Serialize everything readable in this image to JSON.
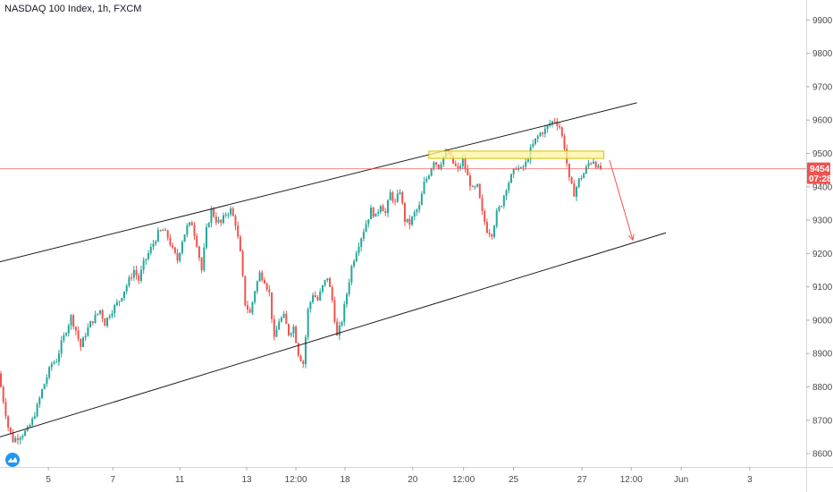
{
  "chart_data": {
    "type": "candlestick",
    "title": "NASDAQ 100 Index, 1h, FXCM",
    "ylim": [
      8560,
      9960
    ],
    "xlim": [
      0,
      100
    ],
    "yticks": [
      8600,
      8700,
      8800,
      8900,
      9000,
      9100,
      9200,
      9300,
      9400,
      9500,
      9600,
      9700,
      9800,
      9900
    ],
    "xticks": [
      {
        "x": 6.0,
        "label": "5"
      },
      {
        "x": 14.0,
        "label": "7"
      },
      {
        "x": 22.3,
        "label": "11"
      },
      {
        "x": 30.6,
        "label": "13"
      },
      {
        "x": 36.7,
        "label": "12:00"
      },
      {
        "x": 42.8,
        "label": "18"
      },
      {
        "x": 51.2,
        "label": "20"
      },
      {
        "x": 57.5,
        "label": "12:00"
      },
      {
        "x": 63.7,
        "label": "25"
      },
      {
        "x": 72.2,
        "label": "27"
      },
      {
        "x": 78.3,
        "label": "12:00"
      },
      {
        "x": 84.5,
        "label": "Jun"
      },
      {
        "x": 93.0,
        "label": "3"
      }
    ],
    "price_path": [
      [
        0,
        8840
      ],
      [
        0.6,
        8760
      ],
      [
        1.2,
        8680
      ],
      [
        1.8,
        8640
      ],
      [
        2.4,
        8650
      ],
      [
        3,
        8660
      ],
      [
        3.6,
        8670
      ],
      [
        4.2,
        8700
      ],
      [
        4.8,
        8740
      ],
      [
        5.4,
        8790
      ],
      [
        6,
        8830
      ],
      [
        6.6,
        8870
      ],
      [
        7.2,
        8880
      ],
      [
        7.8,
        8930
      ],
      [
        8.4,
        8970
      ],
      [
        9,
        9010
      ],
      [
        9.6,
        8970
      ],
      [
        10.2,
        8920
      ],
      [
        10.8,
        8960
      ],
      [
        11.4,
        8990
      ],
      [
        12,
        9010
      ],
      [
        12.6,
        9030
      ],
      [
        13.2,
        8990
      ],
      [
        13.8,
        9020
      ],
      [
        14.4,
        9040
      ],
      [
        15,
        9060
      ],
      [
        15.6,
        9090
      ],
      [
        16.2,
        9120
      ],
      [
        16.8,
        9150
      ],
      [
        17.4,
        9120
      ],
      [
        18,
        9170
      ],
      [
        18.6,
        9200
      ],
      [
        19.2,
        9230
      ],
      [
        19.8,
        9260
      ],
      [
        20.4,
        9270
      ],
      [
        21,
        9250
      ],
      [
        21.6,
        9210
      ],
      [
        22.2,
        9180
      ],
      [
        22.8,
        9240
      ],
      [
        23.4,
        9280
      ],
      [
        24,
        9290
      ],
      [
        24.6,
        9230
      ],
      [
        25.2,
        9150
      ],
      [
        25.8,
        9270
      ],
      [
        26.4,
        9330
      ],
      [
        27,
        9300
      ],
      [
        27.6,
        9290
      ],
      [
        28.2,
        9320
      ],
      [
        28.8,
        9330
      ],
      [
        29.4,
        9290
      ],
      [
        30,
        9200
      ],
      [
        30.6,
        9050
      ],
      [
        31.2,
        9020
      ],
      [
        31.8,
        9090
      ],
      [
        32.4,
        9140
      ],
      [
        33,
        9120
      ],
      [
        33.6,
        9080
      ],
      [
        34.2,
        8940
      ],
      [
        34.8,
        9000
      ],
      [
        35.4,
        9010
      ],
      [
        36,
        8960
      ],
      [
        36.6,
        8980
      ],
      [
        37.2,
        8900
      ],
      [
        37.8,
        8870
      ],
      [
        38.4,
        9030
      ],
      [
        39,
        9080
      ],
      [
        39.6,
        9060
      ],
      [
        40.2,
        9100
      ],
      [
        40.8,
        9130
      ],
      [
        41.4,
        9060
      ],
      [
        42,
        8950
      ],
      [
        42.6,
        9000
      ],
      [
        43.2,
        9080
      ],
      [
        43.8,
        9160
      ],
      [
        44.4,
        9210
      ],
      [
        45,
        9250
      ],
      [
        45.6,
        9290
      ],
      [
        46.2,
        9330
      ],
      [
        46.8,
        9310
      ],
      [
        47.4,
        9350
      ],
      [
        48,
        9320
      ],
      [
        48.6,
        9380
      ],
      [
        49.2,
        9350
      ],
      [
        49.8,
        9390
      ],
      [
        50.4,
        9300
      ],
      [
        51,
        9290
      ],
      [
        51.6,
        9320
      ],
      [
        52.2,
        9340
      ],
      [
        52.8,
        9410
      ],
      [
        53.4,
        9440
      ],
      [
        54,
        9480
      ],
      [
        54.6,
        9460
      ],
      [
        55.2,
        9490
      ],
      [
        55.8,
        9500
      ],
      [
        56.4,
        9470
      ],
      [
        57,
        9450
      ],
      [
        57.6,
        9480
      ],
      [
        58.2,
        9430
      ],
      [
        58.8,
        9390
      ],
      [
        59.4,
        9400
      ],
      [
        60,
        9320
      ],
      [
        60.6,
        9270
      ],
      [
        61.2,
        9260
      ],
      [
        61.8,
        9320
      ],
      [
        62.4,
        9350
      ],
      [
        63,
        9400
      ],
      [
        63.6,
        9430
      ],
      [
        64.2,
        9460
      ],
      [
        64.8,
        9450
      ],
      [
        65.4,
        9470
      ],
      [
        66,
        9510
      ],
      [
        66.6,
        9540
      ],
      [
        67.2,
        9560
      ],
      [
        67.8,
        9570
      ],
      [
        68.4,
        9590
      ],
      [
        69,
        9600
      ],
      [
        69.6,
        9580
      ],
      [
        70.2,
        9520
      ],
      [
        70.8,
        9420
      ],
      [
        71.4,
        9380
      ],
      [
        72,
        9420
      ],
      [
        72.6,
        9440
      ],
      [
        73.2,
        9470
      ],
      [
        73.8,
        9480
      ],
      [
        74.4,
        9454
      ]
    ],
    "channel_upper": [
      [
        0,
        9175
      ],
      [
        79,
        9652
      ]
    ],
    "channel_lower": [
      [
        0,
        8650
      ],
      [
        82.6,
        9262
      ]
    ],
    "resistance_zone": {
      "x0": 53.2,
      "x1": 74.9,
      "y0": 9485,
      "y1": 9507
    },
    "projection_arrow": {
      "from": [
        75.6,
        9480
      ],
      "to": [
        78.5,
        9240
      ]
    },
    "last_price": {
      "value": 9454,
      "label": "9454",
      "countdown": "07:28"
    },
    "colors": {
      "up": "#26a69a",
      "down": "#ef5350",
      "channel": "#1e1e1e",
      "zone_fill": "#fff59d",
      "zone_stroke": "#d6c100",
      "price_line": "#ef5350",
      "arrow": "#ef5350",
      "badge": "#ef5350"
    }
  }
}
